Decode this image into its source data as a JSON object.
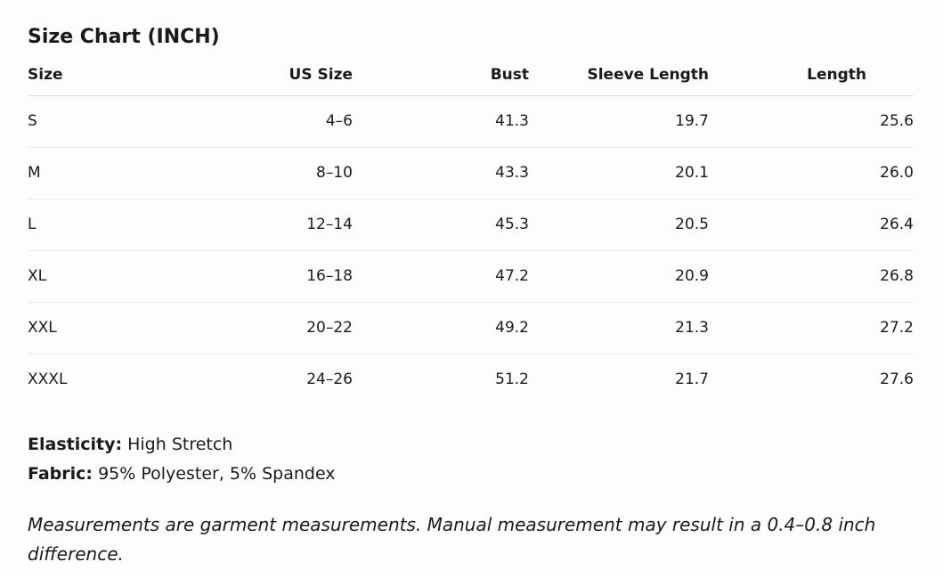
{
  "header": {
    "title": "Size Chart (INCH)"
  },
  "table": {
    "columns": [
      "Size",
      "US Size",
      "Bust",
      "Sleeve Length",
      "Length"
    ],
    "rows": [
      [
        "S",
        "4–6",
        "41.3",
        "19.7",
        "25.6"
      ],
      [
        "M",
        "8–10",
        "43.3",
        "20.1",
        "26.0"
      ],
      [
        "L",
        "12–14",
        "45.3",
        "20.5",
        "26.4"
      ],
      [
        "XL",
        "16–18",
        "47.2",
        "20.9",
        "26.8"
      ],
      [
        "XXL",
        "20–22",
        "49.2",
        "21.3",
        "27.2"
      ],
      [
        "XXXL",
        "24–26",
        "51.2",
        "21.7",
        "27.6"
      ]
    ]
  },
  "details": [
    {
      "label": "Elasticity:",
      "text": "High Stretch"
    },
    {
      "label": "Fabric:",
      "text": "95% Polyester, 5% Spandex"
    }
  ],
  "note": "Measurements are garment measurements. Manual measurement may result in a 0.4–0.8 inch difference."
}
